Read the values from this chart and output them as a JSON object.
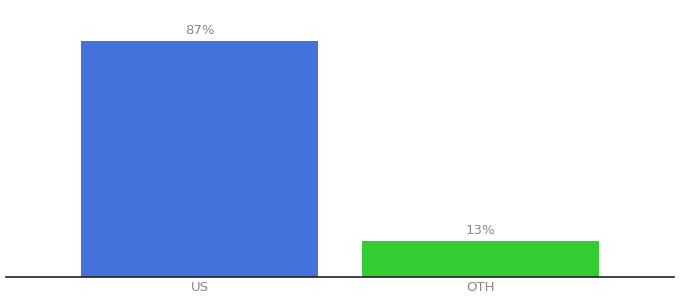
{
  "categories": [
    "US",
    "OTH"
  ],
  "values": [
    87,
    13
  ],
  "bar_colors": [
    "#4472db",
    "#33cc33"
  ],
  "labels": [
    "87%",
    "13%"
  ],
  "background_color": "#ffffff",
  "bar_width": 0.55,
  "x_positions": [
    0.35,
    1.0
  ],
  "ylim": [
    0,
    100
  ],
  "xlim": [
    -0.1,
    1.45
  ],
  "label_fontsize": 9.5,
  "tick_fontsize": 9.5,
  "tick_color": "#888888",
  "label_color": "#888888",
  "spine_color": "#222222"
}
